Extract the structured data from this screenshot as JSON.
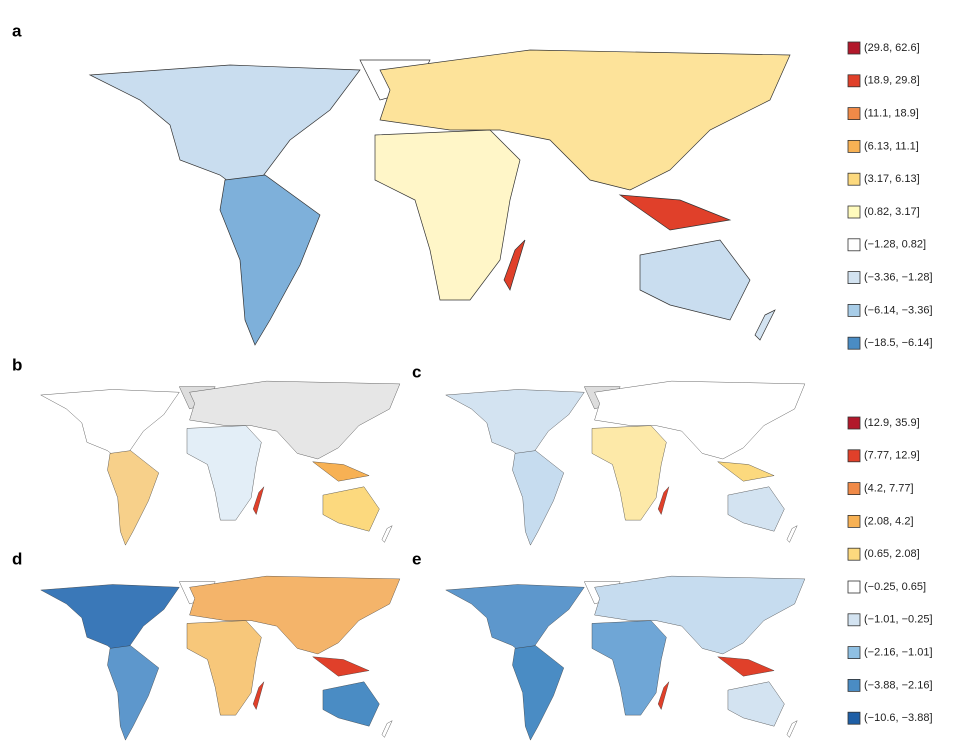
{
  "panels": [
    {
      "label": "a"
    },
    {
      "label": "b"
    },
    {
      "label": "c"
    },
    {
      "label": "d"
    },
    {
      "label": "e"
    }
  ],
  "legends": [
    {
      "entries": [
        {
          "label": "(29.8, 62.6]",
          "color": "#b2182b"
        },
        {
          "label": "(18.9, 29.8]",
          "color": "#e0402a"
        },
        {
          "label": "(11.1, 18.9]",
          "color": "#f08a48"
        },
        {
          "label": "(6.13, 11.1]",
          "color": "#f7b154"
        },
        {
          "label": "(3.17, 6.13]",
          "color": "#fcd97e"
        },
        {
          "label": "(0.82, 3.17]",
          "color": "#fffbbd"
        },
        {
          "label": "(−1.28, 0.82]",
          "color": "#ffffff"
        },
        {
          "label": "(−3.36, −1.28]",
          "color": "#d3e3f1"
        },
        {
          "label": "(−6.14, −3.36]",
          "color": "#a8cde8"
        },
        {
          "label": "(−18.5, −6.14]",
          "color": "#4a8cc4"
        }
      ]
    },
    {
      "entries": [
        {
          "label": "(12.9, 35.9]",
          "color": "#b2182b"
        },
        {
          "label": "(7.77, 12.9]",
          "color": "#e0402a"
        },
        {
          "label": "(4.2, 7.77]",
          "color": "#f08a48"
        },
        {
          "label": "(2.08, 4.2]",
          "color": "#f7b154"
        },
        {
          "label": "(0.65, 2.08]",
          "color": "#fcd97e"
        },
        {
          "label": "(−0.25, 0.65]",
          "color": "#ffffff"
        },
        {
          "label": "(−1.01, −0.25]",
          "color": "#d3e3f1"
        },
        {
          "label": "(−2.16, −1.01]",
          "color": "#8fc0e3"
        },
        {
          "label": "(−3.88, −2.16]",
          "color": "#4a8cc4"
        },
        {
          "label": "(−10.6, −3.88]",
          "color": "#1f5fa6"
        }
      ]
    }
  ]
}
